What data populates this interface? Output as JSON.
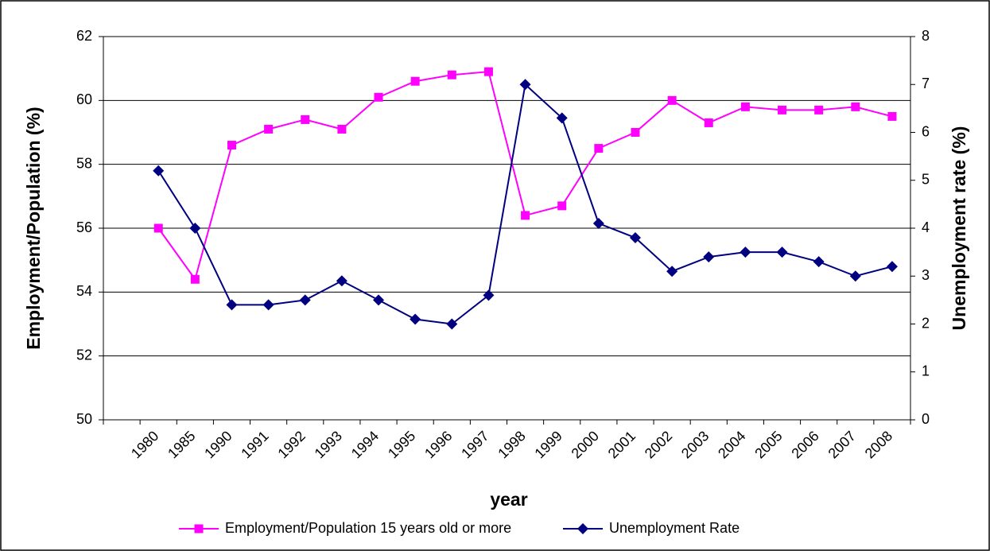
{
  "chart_data": {
    "type": "line",
    "x_label": "year",
    "y_label": "Employment/Population (%)",
    "y2_label": "Unemployment rate (%)",
    "categories": [
      null,
      "1980",
      "1985",
      "1990",
      "1991",
      "1992",
      "1993",
      "1994",
      "1995",
      "1996",
      "1997",
      "1998",
      "1999",
      "2000",
      "2001",
      "2002",
      "2003",
      "2004",
      "2005",
      "2006",
      "2007",
      "2008"
    ],
    "series": [
      {
        "name": "Employment/Population 15 years old or more",
        "color": "#ff00ff",
        "marker": "square",
        "values": [
          null,
          56.0,
          54.4,
          58.6,
          59.1,
          59.4,
          59.1,
          60.1,
          60.6,
          60.8,
          60.9,
          56.4,
          56.7,
          58.5,
          59.0,
          60.0,
          59.3,
          59.8,
          59.7,
          59.7,
          59.8,
          59.5
        ]
      },
      {
        "name": "Unemployment Rate",
        "color": "#000080",
        "marker": "diamond",
        "axis": "y2",
        "values": [
          null,
          5.2,
          4.0,
          2.4,
          2.4,
          2.5,
          2.9,
          2.5,
          2.1,
          2.0,
          2.6,
          7.0,
          6.3,
          4.1,
          3.8,
          3.1,
          3.4,
          3.5,
          3.5,
          3.3,
          3.0,
          3.2
        ]
      }
    ],
    "ylim": [
      50,
      62
    ],
    "yticks": [
      50,
      52,
      54,
      56,
      58,
      60,
      62
    ],
    "y2lim": [
      0,
      8
    ],
    "y2ticks": [
      0,
      1,
      2,
      3,
      4,
      5,
      6,
      7,
      8
    ],
    "grid": true,
    "legend": "bottom"
  }
}
